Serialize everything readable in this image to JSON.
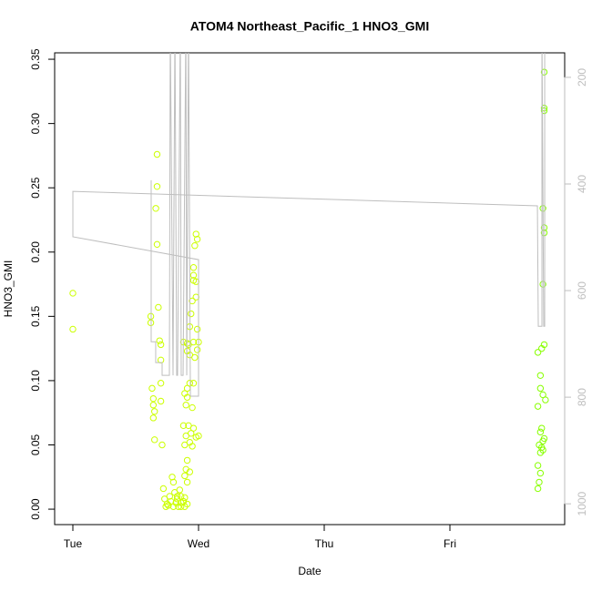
{
  "chart_data": {
    "type": "scatter",
    "title": "ATOM4 Northeast_Pacific_1 HNO3_GMI",
    "xlabel": "Date",
    "ylabel": "HNO3_GMI",
    "xlim": [
      -0.145,
      3.913
    ],
    "xticks": [
      {
        "value": 0,
        "label": "Tue"
      },
      {
        "value": 1,
        "label": "Wed"
      },
      {
        "value": 2,
        "label": "Thu"
      },
      {
        "value": 3,
        "label": "Fri"
      }
    ],
    "ylim": [
      -0.012,
      0.355
    ],
    "yticks": [
      {
        "value": 0,
        "label": "0.00"
      },
      {
        "value": 0.05,
        "label": "0.05"
      },
      {
        "value": 0.1,
        "label": "0.10"
      },
      {
        "value": 0.15,
        "label": "0.15"
      },
      {
        "value": 0.2,
        "label": "0.20"
      },
      {
        "value": 0.25,
        "label": "0.25"
      },
      {
        "value": 0.3,
        "label": "0.30"
      },
      {
        "value": 0.35,
        "label": "0.35"
      }
    ],
    "y2lim": [
      1039,
      154
    ],
    "y2ticks": [
      200,
      400,
      600,
      800,
      1000
    ],
    "y2color": "#bebebe",
    "series": [
      {
        "color": "#ccff00",
        "x": [
          0,
          0,
          0.67,
          0.67,
          0.66,
          0.67,
          0.68,
          0.62,
          0.62,
          0.69,
          0.7,
          0.7,
          0.7,
          0.63,
          0.64,
          0.64,
          0.65,
          0.64,
          0.7,
          0.65,
          0.71,
          0.72,
          0.73,
          0.74,
          0.76,
          0.78,
          0.79,
          0.8,
          0.81,
          0.83,
          0.84,
          0.86,
          0.86,
          0.88,
          0.89,
          0.77,
          0.75,
          0.8,
          0.82,
          0.83,
          0.85,
          0.86,
          0.88,
          0.98,
          0.99,
          0.97,
          0.96,
          0.96,
          0.96,
          0.98,
          0.98,
          0.95,
          0.94,
          0.99,
          0.93,
          0.96,
          0.88,
          0.91,
          0.92,
          1.0,
          0.99,
          0.91,
          0.93,
          0.97,
          0.96,
          0.93,
          0.91,
          0.89,
          0.91,
          0.9,
          0.95,
          0.92,
          0.88,
          0.96,
          0.94,
          0.9,
          0.93,
          0.98,
          1.0,
          0.89,
          0.95,
          0.91,
          0.9,
          0.93,
          0.89,
          0.91,
          0.89,
          0.91
        ],
        "values": [
          0.168,
          0.14,
          0.276,
          0.251,
          0.234,
          0.206,
          0.157,
          0.15,
          0.145,
          0.131,
          0.128,
          0.116,
          0.098,
          0.094,
          0.086,
          0.081,
          0.076,
          0.071,
          0.084,
          0.054,
          0.05,
          0.016,
          0.008,
          0.002,
          0.003,
          0.006,
          0.025,
          0.021,
          0.013,
          0.008,
          0.002,
          0.005,
          0.01,
          0.006,
          0.002,
          0.01,
          0.004,
          0.002,
          0.005,
          0.01,
          0.015,
          0.002,
          0.006,
          0.214,
          0.21,
          0.205,
          0.188,
          0.182,
          0.178,
          0.177,
          0.165,
          0.162,
          0.152,
          0.14,
          0.142,
          0.13,
          0.13,
          0.129,
          0.128,
          0.13,
          0.124,
          0.123,
          0.12,
          0.118,
          0.098,
          0.098,
          0.094,
          0.09,
          0.087,
          0.081,
          0.079,
          0.065,
          0.065,
          0.063,
          0.059,
          0.057,
          0.052,
          0.056,
          0.057,
          0.05,
          0.049,
          0.038,
          0.031,
          0.029,
          0.026,
          0.021,
          0.009,
          0.004
        ]
      },
      {
        "color": "#88ff00",
        "x": [
          3.75,
          3.75,
          3.75,
          3.74,
          3.75,
          3.75,
          3.74,
          3.75,
          3.7,
          3.73,
          3.72,
          3.72,
          3.76,
          3.74,
          3.7,
          3.73,
          3.72,
          3.75,
          3.74,
          3.71,
          3.73,
          3.72,
          3.74,
          3.72,
          3.7,
          3.71,
          3.7
        ],
        "values": [
          0.34,
          0.312,
          0.31,
          0.234,
          0.219,
          0.215,
          0.175,
          0.128,
          0.122,
          0.125,
          0.104,
          0.094,
          0.085,
          0.089,
          0.08,
          0.063,
          0.06,
          0.055,
          0.053,
          0.05,
          0.048,
          0.044,
          0.046,
          0.028,
          0.034,
          0.021,
          0.016
        ]
      },
      {
        "type": "line",
        "axis": "y2",
        "color": "#bebebe",
        "x": [
          0.623,
          0.623,
          0.659,
          0.659,
          0.71,
          0.71,
          0.768,
          0.775,
          0.797,
          0.812,
          0.826,
          0.833,
          0.855,
          0.862,
          0.877,
          0.899,
          0.906,
          0.92,
          0.935,
          0.949,
          1.0,
          1.0,
          0,
          0,
          3.696,
          3.703,
          3.732,
          3.732,
          3.746,
          3.754,
          3.754
        ],
        "values": [
          393,
          696,
          696,
          735,
          735,
          759,
          759,
          100,
          759,
          100,
          759,
          759,
          100,
          759,
          759,
          100,
          759,
          100,
          798,
          798,
          798,
          542,
          499,
          414,
          441,
          667,
          667,
          100,
          667,
          667,
          100
        ]
      }
    ]
  }
}
